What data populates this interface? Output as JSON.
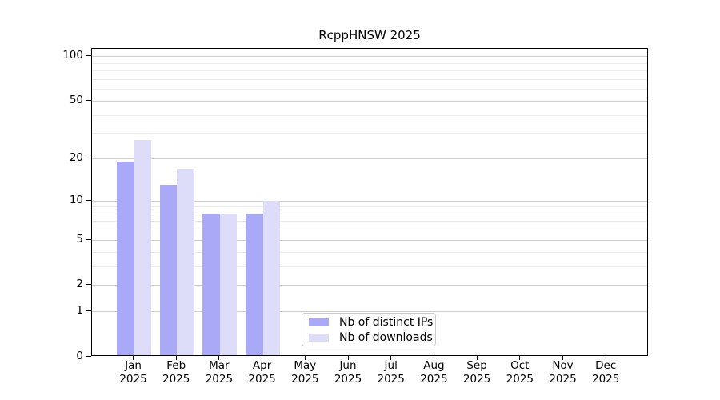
{
  "title": "RcppHNSW 2025",
  "chart_data": {
    "type": "bar",
    "title": "RcppHNSW 2025",
    "categories": [
      "Jan",
      "Feb",
      "Mar",
      "Apr",
      "May",
      "Jun",
      "Jul",
      "Aug",
      "Sep",
      "Oct",
      "Nov",
      "Dec"
    ],
    "year": "2025",
    "series": [
      {
        "name": "Nb of distinct IPs",
        "color": "#a9a9f7",
        "values": [
          19,
          13,
          8,
          8,
          0,
          0,
          0,
          0,
          0,
          0,
          0,
          0
        ]
      },
      {
        "name": "Nb of downloads",
        "color": "#ddddf9",
        "values": [
          27,
          17,
          8,
          10,
          0,
          0,
          0,
          0,
          0,
          0,
          0,
          0
        ]
      }
    ],
    "xlabel": "",
    "ylabel": "",
    "y_scale": "log1p",
    "ylim": [
      0,
      113
    ],
    "y_ticks": [
      0,
      1,
      2,
      5,
      10,
      20,
      50,
      100
    ],
    "y_minor_gridlines": [
      3,
      4,
      6,
      7,
      8,
      9,
      30,
      40,
      60,
      70,
      80,
      90
    ],
    "grid": "horizontal",
    "legend_position": "bottom-center",
    "colors": {
      "bar_distinct_ips": "#a9a9f7",
      "bar_downloads": "#ddddf9",
      "major_gridline": "#cdcdcd",
      "minor_gridline": "#ececec",
      "axis": "#000000",
      "legend_border": "#cccccc"
    }
  }
}
